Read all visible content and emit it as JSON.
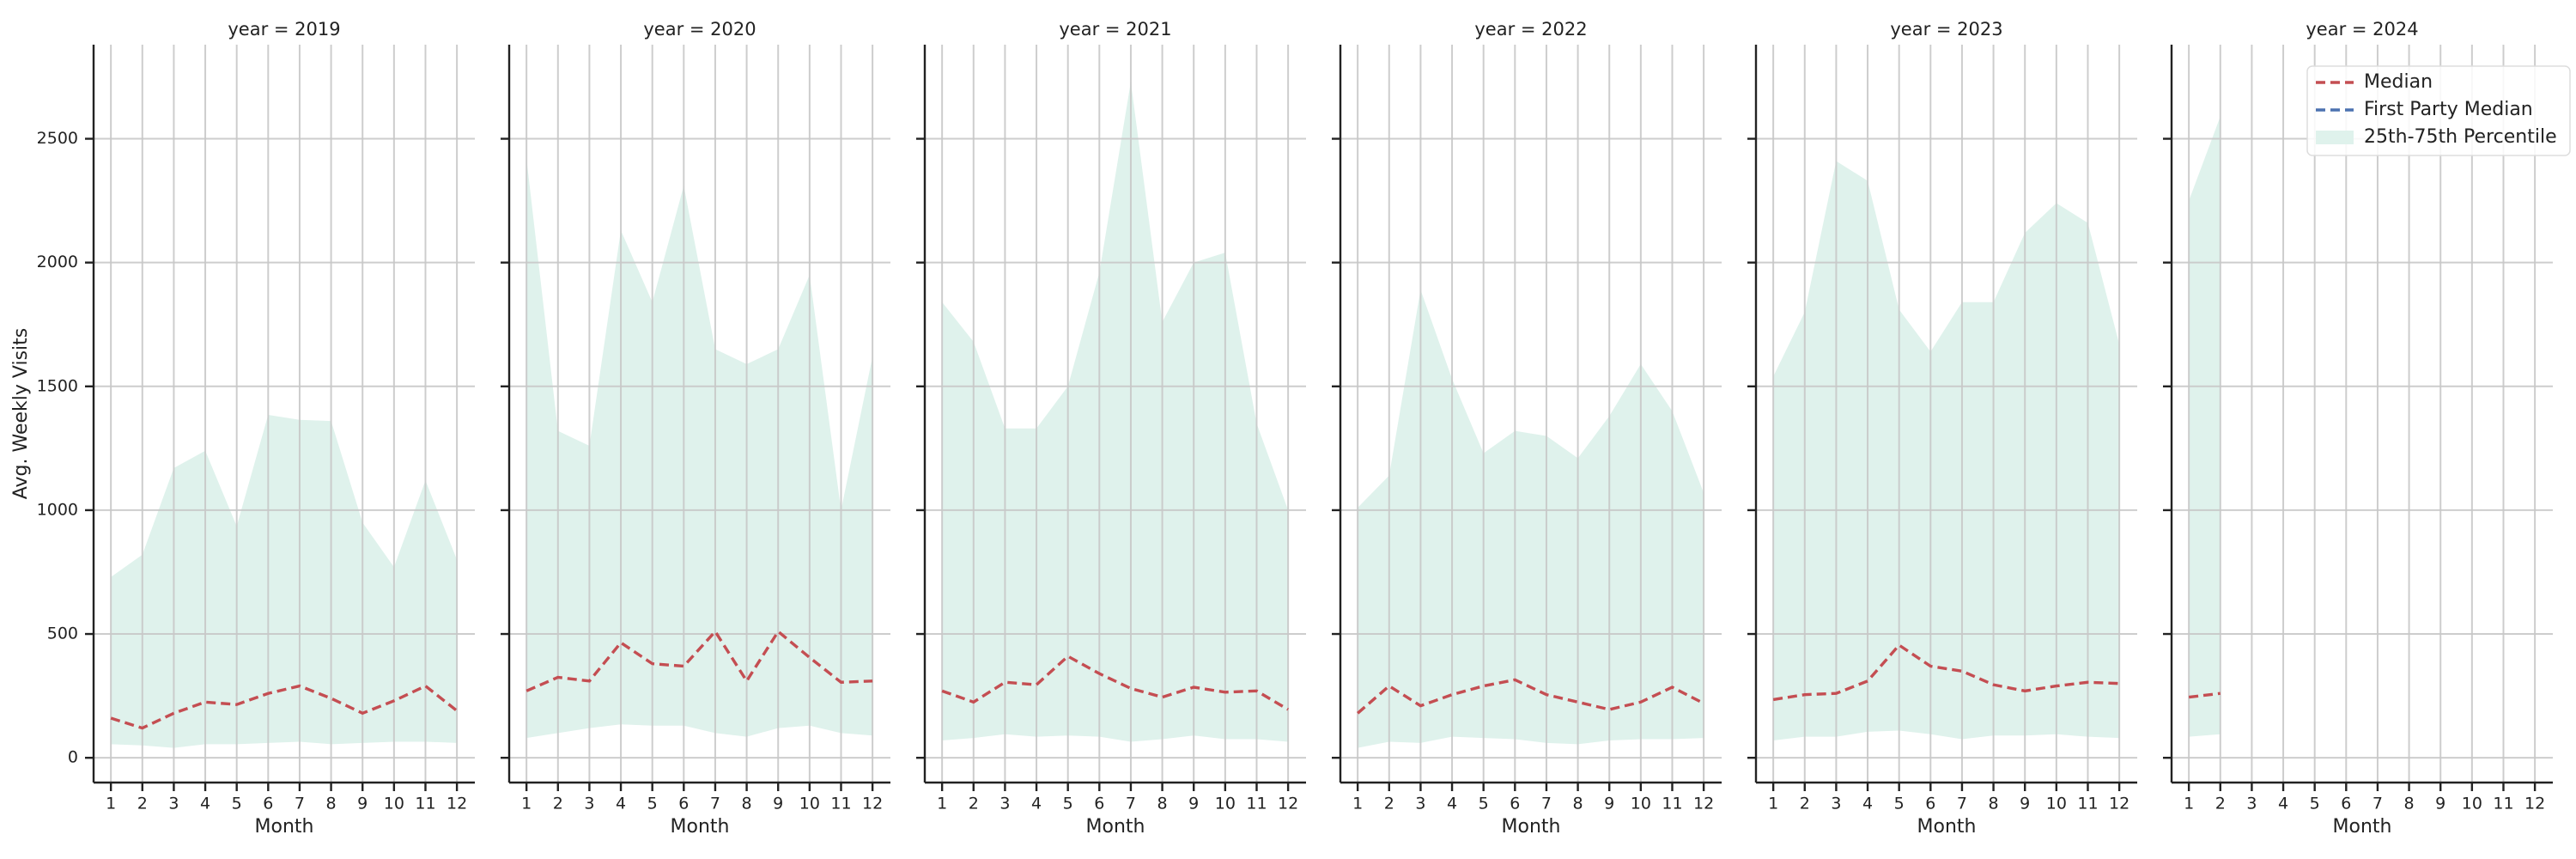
{
  "chart_data": [
    {
      "type": "line",
      "title": "year = 2019",
      "xlabel": "Month",
      "ylabel": "Avg. Weekly Visits",
      "grid": true,
      "x": [
        1,
        2,
        3,
        4,
        5,
        6,
        7,
        8,
        9,
        10,
        11,
        12
      ],
      "xlim": [
        0.45,
        12.57
      ],
      "xticks": [
        1,
        2,
        3,
        4,
        5,
        6,
        7,
        8,
        9,
        10,
        11,
        12
      ],
      "ylim": [
        -100,
        2880
      ],
      "yticks": [
        0,
        500,
        1000,
        1500,
        2000,
        2500
      ],
      "series": [
        {
          "name": "Median",
          "color": "#c44e52",
          "dashed": true,
          "values": [
            160,
            120,
            180,
            225,
            215,
            260,
            290,
            240,
            180,
            230,
            290,
            190
          ]
        },
        {
          "name": "First Party Median",
          "color": "#4c72b0",
          "dashed": true,
          "values": [
            null,
            null,
            null,
            null,
            null,
            null,
            null,
            null,
            null,
            null,
            null,
            null
          ]
        },
        {
          "name": "25th-75th Percentile",
          "color": "#dff2ec",
          "type": "band",
          "low": [
            55,
            50,
            40,
            55,
            55,
            60,
            65,
            55,
            60,
            65,
            65,
            60
          ],
          "high": [
            730,
            820,
            1170,
            1240,
            935,
            1385,
            1365,
            1360,
            950,
            770,
            1120,
            800
          ]
        }
      ]
    },
    {
      "type": "line",
      "title": "year = 2020",
      "xlabel": "Month",
      "grid": true,
      "x": [
        1,
        2,
        3,
        4,
        5,
        6,
        7,
        8,
        9,
        10,
        11,
        12
      ],
      "xlim": [
        0.45,
        12.57
      ],
      "xticks": [
        1,
        2,
        3,
        4,
        5,
        6,
        7,
        8,
        9,
        10,
        11,
        12
      ],
      "ylim": [
        -100,
        2880
      ],
      "yticks": [
        0,
        500,
        1000,
        1500,
        2000,
        2500
      ],
      "series": [
        {
          "name": "Median",
          "color": "#c44e52",
          "dashed": true,
          "values": [
            270,
            325,
            310,
            465,
            380,
            370,
            510,
            310,
            510,
            405,
            305,
            310
          ]
        },
        {
          "name": "First Party Median",
          "color": "#4c72b0",
          "dashed": true,
          "values": [
            null,
            null,
            null,
            null,
            null,
            null,
            null,
            null,
            null,
            null,
            null,
            null
          ]
        },
        {
          "name": "25th-75th Percentile",
          "color": "#dff2ec",
          "type": "band",
          "low": [
            80,
            100,
            120,
            135,
            130,
            130,
            100,
            85,
            120,
            130,
            100,
            90
          ],
          "high": [
            2420,
            1320,
            1260,
            2130,
            1840,
            2310,
            1650,
            1590,
            1650,
            1950,
            1000,
            1620
          ]
        }
      ]
    },
    {
      "type": "line",
      "title": "year = 2021",
      "xlabel": "Month",
      "grid": true,
      "x": [
        1,
        2,
        3,
        4,
        5,
        6,
        7,
        8,
        9,
        10,
        11,
        12
      ],
      "xlim": [
        0.45,
        12.57
      ],
      "xticks": [
        1,
        2,
        3,
        4,
        5,
        6,
        7,
        8,
        9,
        10,
        11,
        12
      ],
      "ylim": [
        -100,
        2880
      ],
      "yticks": [
        0,
        500,
        1000,
        1500,
        2000,
        2500
      ],
      "series": [
        {
          "name": "Median",
          "color": "#c44e52",
          "dashed": true,
          "values": [
            270,
            225,
            305,
            295,
            410,
            340,
            280,
            245,
            285,
            265,
            270,
            195
          ]
        },
        {
          "name": "First Party Median",
          "color": "#4c72b0",
          "dashed": true,
          "values": [
            null,
            null,
            null,
            null,
            null,
            null,
            null,
            null,
            null,
            null,
            null,
            null
          ]
        },
        {
          "name": "25th-75th Percentile",
          "color": "#dff2ec",
          "type": "band",
          "low": [
            70,
            80,
            95,
            85,
            90,
            85,
            65,
            75,
            90,
            75,
            75,
            65
          ],
          "high": [
            1840,
            1680,
            1330,
            1330,
            1500,
            1960,
            2730,
            1760,
            2000,
            2040,
            1350,
            1000
          ]
        }
      ]
    },
    {
      "type": "line",
      "title": "year = 2022",
      "xlabel": "Month",
      "grid": true,
      "x": [
        1,
        2,
        3,
        4,
        5,
        6,
        7,
        8,
        9,
        10,
        11,
        12
      ],
      "xlim": [
        0.45,
        12.57
      ],
      "xticks": [
        1,
        2,
        3,
        4,
        5,
        6,
        7,
        8,
        9,
        10,
        11,
        12
      ],
      "ylim": [
        -100,
        2880
      ],
      "yticks": [
        0,
        500,
        1000,
        1500,
        2000,
        2500
      ],
      "series": [
        {
          "name": "Median",
          "color": "#c44e52",
          "dashed": true,
          "values": [
            180,
            290,
            210,
            255,
            290,
            315,
            255,
            225,
            195,
            225,
            285,
            220
          ]
        },
        {
          "name": "First Party Median",
          "color": "#4c72b0",
          "dashed": true,
          "values": [
            null,
            null,
            null,
            null,
            null,
            null,
            null,
            null,
            null,
            null,
            null,
            null
          ]
        },
        {
          "name": "25th-75th Percentile",
          "color": "#dff2ec",
          "type": "band",
          "low": [
            40,
            65,
            60,
            85,
            80,
            75,
            60,
            55,
            70,
            75,
            75,
            80
          ],
          "high": [
            1010,
            1140,
            1890,
            1530,
            1230,
            1320,
            1300,
            1210,
            1380,
            1590,
            1400,
            1070
          ]
        }
      ]
    },
    {
      "type": "line",
      "title": "year = 2023",
      "xlabel": "Month",
      "grid": true,
      "x": [
        1,
        2,
        3,
        4,
        5,
        6,
        7,
        8,
        9,
        10,
        11,
        12
      ],
      "xlim": [
        0.45,
        12.57
      ],
      "xticks": [
        1,
        2,
        3,
        4,
        5,
        6,
        7,
        8,
        9,
        10,
        11,
        12
      ],
      "ylim": [
        -100,
        2880
      ],
      "yticks": [
        0,
        500,
        1000,
        1500,
        2000,
        2500
      ],
      "series": [
        {
          "name": "Median",
          "color": "#c44e52",
          "dashed": true,
          "values": [
            235,
            255,
            260,
            310,
            455,
            370,
            350,
            295,
            270,
            290,
            305,
            300
          ]
        },
        {
          "name": "First Party Median",
          "color": "#4c72b0",
          "dashed": true,
          "values": [
            null,
            null,
            null,
            null,
            null,
            null,
            null,
            null,
            null,
            null,
            null,
            null
          ]
        },
        {
          "name": "25th-75th Percentile",
          "color": "#dff2ec",
          "type": "band",
          "low": [
            70,
            85,
            85,
            105,
            110,
            95,
            75,
            90,
            90,
            95,
            85,
            80
          ],
          "high": [
            1540,
            1800,
            2410,
            2330,
            1810,
            1640,
            1840,
            1840,
            2120,
            2240,
            2160,
            1670
          ]
        }
      ]
    },
    {
      "type": "line",
      "title": "year = 2024",
      "xlabel": "Month",
      "grid": true,
      "legend": "upper right",
      "x": [
        1,
        2,
        3,
        4,
        5,
        6,
        7,
        8,
        9,
        10,
        11,
        12
      ],
      "xlim": [
        0.45,
        12.57
      ],
      "xticks": [
        1,
        2,
        3,
        4,
        5,
        6,
        7,
        8,
        9,
        10,
        11,
        12
      ],
      "ylim": [
        -100,
        2880
      ],
      "yticks": [
        0,
        500,
        1000,
        1500,
        2000,
        2500
      ],
      "series": [
        {
          "name": "Median",
          "color": "#c44e52",
          "dashed": true,
          "values": [
            245,
            260,
            null,
            null,
            null,
            null,
            null,
            null,
            null,
            null,
            null,
            null
          ]
        },
        {
          "name": "First Party Median",
          "color": "#4c72b0",
          "dashed": true,
          "values": [
            null,
            null,
            null,
            null,
            null,
            null,
            null,
            null,
            null,
            null,
            null,
            null
          ]
        },
        {
          "name": "25th-75th Percentile",
          "color": "#dff2ec",
          "type": "band",
          "low": [
            85,
            95,
            null,
            null,
            null,
            null,
            null,
            null,
            null,
            null,
            null,
            null
          ],
          "high": [
            2250,
            2590,
            null,
            null,
            null,
            null,
            null,
            null,
            null,
            null,
            null,
            null
          ]
        }
      ]
    }
  ]
}
